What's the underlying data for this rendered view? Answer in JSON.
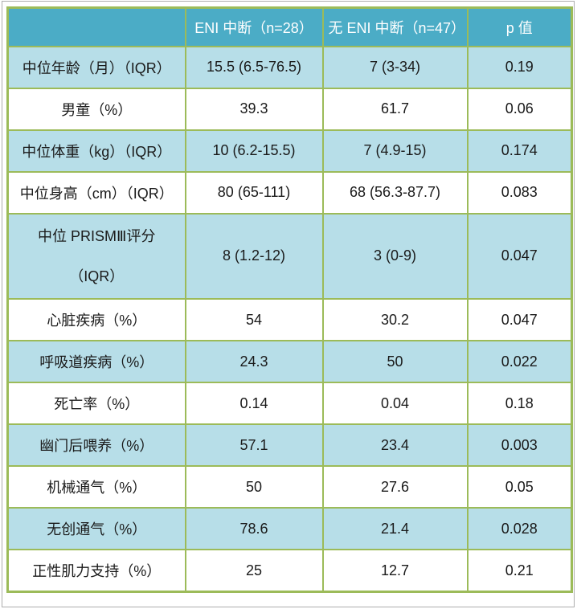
{
  "colors": {
    "header_bg": "#4BACC6",
    "header_text": "#FFFFFF",
    "shaded_row_bg": "#B7DEE8",
    "plain_row_bg": "#FFFFFF",
    "grid_border": "#9CBB59",
    "body_text": "#1A1A1A"
  },
  "chart_data": {
    "type": "table",
    "title": "",
    "columns": [
      "",
      "ENI 中断（n=28）",
      "无 ENI 中断（n=47）",
      "p 值"
    ],
    "rows": [
      {
        "label": "中位年龄（月）（IQR）",
        "eni": "15.5 (6.5-76.5)",
        "no_eni": "7 (3-34)",
        "p": "0.19",
        "tall": false
      },
      {
        "label": "男童（%）",
        "eni": "39.3",
        "no_eni": "61.7",
        "p": "0.06",
        "tall": false
      },
      {
        "label": "中位体重（kg）（IQR）",
        "eni": "10 (6.2-15.5)",
        "no_eni": "7 (4.9-15)",
        "p": "0.174",
        "tall": false
      },
      {
        "label": "中位身高（cm）（IQR）",
        "eni": "80 (65-111)",
        "no_eni": "68 (56.3-87.7)",
        "p": "0.083",
        "tall": false
      },
      {
        "label": "中位 PRISMⅢ评分\n（IQR）",
        "eni": "8 (1.2-12)",
        "no_eni": "3 (0-9)",
        "p": "0.047",
        "tall": true
      },
      {
        "label": "心脏疾病（%）",
        "eni": "54",
        "no_eni": "30.2",
        "p": "0.047",
        "tall": false
      },
      {
        "label": "呼吸道疾病（%）",
        "eni": "24.3",
        "no_eni": "50",
        "p": "0.022",
        "tall": false
      },
      {
        "label": "死亡率（%）",
        "eni": "0.14",
        "no_eni": "0.04",
        "p": "0.18",
        "tall": false
      },
      {
        "label": "幽门后喂养（%）",
        "eni": "57.1",
        "no_eni": "23.4",
        "p": "0.003",
        "tall": false
      },
      {
        "label": "机械通气（%）",
        "eni": "50",
        "no_eni": "27.6",
        "p": "0.05",
        "tall": false
      },
      {
        "label": "无创通气（%）",
        "eni": "78.6",
        "no_eni": "21.4",
        "p": "0.028",
        "tall": false
      },
      {
        "label": "正性肌力支持（%）",
        "eni": "25",
        "no_eni": "12.7",
        "p": "0.21",
        "tall": false
      }
    ]
  }
}
